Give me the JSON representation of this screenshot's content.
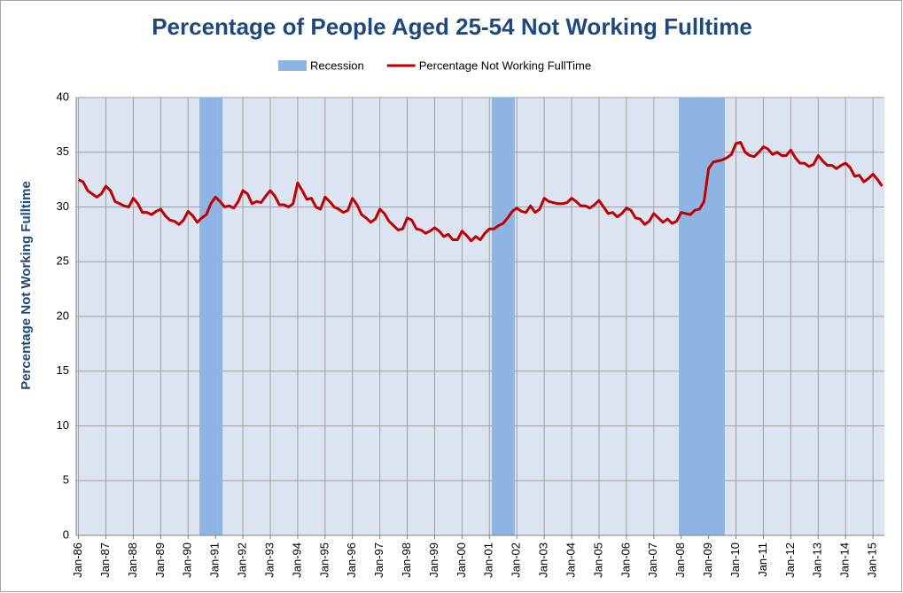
{
  "chart_data": {
    "type": "line",
    "title": "Percentage of People Aged 25-54 Not Working Fulltime",
    "y_label": "Percentage Not Working Fulltime",
    "categories": [
      "Jan-86",
      null,
      null,
      null,
      null,
      null,
      "Jan-87",
      null,
      null,
      null,
      null,
      null,
      "Jan-88",
      null,
      null,
      null,
      null,
      null,
      "Jan-89",
      null,
      null,
      null,
      null,
      null,
      "Jan-90",
      null,
      null,
      null,
      null,
      null,
      "Jan-91",
      null,
      null,
      null,
      null,
      null,
      "Jan-92",
      null,
      null,
      null,
      null,
      null,
      "Jan-93",
      null,
      null,
      null,
      null,
      null,
      "Jan-94",
      null,
      null,
      null,
      null,
      null,
      "Jan-95",
      null,
      null,
      null,
      null,
      null,
      "Jan-96",
      null,
      null,
      null,
      null,
      null,
      "Jan-97",
      null,
      null,
      null,
      null,
      null,
      "Jan-98",
      null,
      null,
      null,
      null,
      null,
      "Jan-99",
      null,
      null,
      null,
      null,
      null,
      "Jan-00",
      null,
      null,
      null,
      null,
      null,
      "Jan-01",
      null,
      null,
      null,
      null,
      null,
      "Jan-02",
      null,
      null,
      null,
      null,
      null,
      "Jan-03",
      null,
      null,
      null,
      null,
      null,
      "Jan-04",
      null,
      null,
      null,
      null,
      null,
      "Jan-05",
      null,
      null,
      null,
      null,
      null,
      "Jan-06",
      null,
      null,
      null,
      null,
      null,
      "Jan-07",
      null,
      null,
      null,
      null,
      null,
      "Jan-08",
      null,
      null,
      null,
      null,
      null,
      "Jan-09",
      null,
      null,
      null,
      null,
      null,
      "Jan-10",
      null,
      null,
      null,
      null,
      null,
      "Jan-11",
      null,
      null,
      null,
      null,
      null,
      "Jan-12",
      null,
      null,
      null,
      null,
      null,
      "Jan-13",
      null,
      null,
      null,
      null,
      null,
      "Jan-14",
      null,
      null,
      null,
      null,
      null,
      "Jan-15",
      null,
      null
    ],
    "series": [
      {
        "name": "Recession",
        "type": "bar",
        "color": "#8eb4e3",
        "values": [
          0,
          0,
          0,
          0,
          0,
          0,
          0,
          0,
          0,
          0,
          0,
          0,
          0,
          0,
          0,
          0,
          0,
          0,
          0,
          0,
          0,
          0,
          0,
          0,
          0,
          0,
          0,
          40,
          40,
          40,
          40,
          40,
          0,
          0,
          0,
          0,
          0,
          0,
          0,
          0,
          0,
          0,
          0,
          0,
          0,
          0,
          0,
          0,
          0,
          0,
          0,
          0,
          0,
          0,
          0,
          0,
          0,
          0,
          0,
          0,
          0,
          0,
          0,
          0,
          0,
          0,
          0,
          0,
          0,
          0,
          0,
          0,
          0,
          0,
          0,
          0,
          0,
          0,
          0,
          0,
          0,
          0,
          0,
          0,
          0,
          0,
          0,
          0,
          0,
          0,
          0,
          40,
          40,
          40,
          40,
          40,
          0,
          0,
          0,
          0,
          0,
          0,
          0,
          0,
          0,
          0,
          0,
          0,
          0,
          0,
          0,
          0,
          0,
          0,
          0,
          0,
          0,
          0,
          0,
          0,
          0,
          0,
          0,
          0,
          0,
          0,
          0,
          0,
          0,
          0,
          0,
          0,
          40,
          40,
          40,
          40,
          40,
          40,
          40,
          40,
          40,
          40,
          0,
          0,
          0,
          0,
          0,
          0,
          0,
          0,
          0,
          0,
          0,
          0,
          0,
          0,
          0,
          0,
          0,
          0,
          0,
          0,
          0,
          0,
          0,
          0,
          0,
          0,
          0,
          0,
          0,
          0,
          0,
          0,
          0,
          0,
          0
        ]
      },
      {
        "name": "Percentage Not Working FullTime",
        "type": "line",
        "color": "#c00000",
        "values": [
          32.5,
          32.3,
          31.5,
          31.2,
          30.9,
          31.2,
          31.9,
          31.5,
          30.5,
          30.3,
          30.1,
          30.0,
          30.8,
          30.3,
          29.5,
          29.5,
          29.3,
          29.6,
          29.8,
          29.2,
          28.8,
          28.7,
          28.4,
          28.8,
          29.6,
          29.2,
          28.6,
          29.0,
          29.3,
          30.3,
          30.9,
          30.5,
          30.0,
          30.1,
          29.9,
          30.5,
          31.5,
          31.2,
          30.3,
          30.5,
          30.4,
          31.0,
          31.5,
          31.0,
          30.2,
          30.2,
          30.0,
          30.3,
          32.2,
          31.5,
          30.7,
          30.8,
          30.0,
          29.8,
          30.9,
          30.5,
          30.0,
          29.8,
          29.5,
          29.7,
          30.8,
          30.2,
          29.3,
          29.0,
          28.6,
          28.9,
          29.8,
          29.4,
          28.7,
          28.3,
          27.9,
          28.0,
          29.0,
          28.8,
          28.0,
          27.9,
          27.6,
          27.8,
          28.1,
          27.8,
          27.3,
          27.5,
          27.0,
          27.0,
          27.8,
          27.4,
          26.9,
          27.3,
          27.0,
          27.6,
          28.0,
          28.0,
          28.3,
          28.5,
          29.0,
          29.6,
          29.9,
          29.6,
          29.5,
          30.1,
          29.5,
          29.8,
          30.8,
          30.5,
          30.4,
          30.3,
          30.3,
          30.4,
          30.8,
          30.5,
          30.1,
          30.1,
          29.9,
          30.2,
          30.6,
          30.0,
          29.4,
          29.5,
          29.1,
          29.4,
          29.9,
          29.7,
          29.0,
          28.9,
          28.4,
          28.7,
          29.4,
          29.0,
          28.6,
          28.9,
          28.5,
          28.7,
          29.5,
          29.4,
          29.3,
          29.7,
          29.8,
          30.5,
          33.5,
          34.1,
          34.2,
          34.3,
          34.5,
          34.8,
          35.8,
          35.9,
          35.0,
          34.7,
          34.6,
          35.0,
          35.5,
          35.3,
          34.8,
          35.0,
          34.7,
          34.7,
          35.2,
          34.5,
          34.0,
          34.0,
          33.7,
          33.9,
          34.7,
          34.2,
          33.8,
          33.8,
          33.5,
          33.8,
          34.0,
          33.6,
          32.8,
          32.9,
          32.3,
          32.6,
          33.0,
          32.5,
          31.9
        ]
      }
    ],
    "ylim": [
      0,
      40
    ],
    "yticks": [
      0,
      5,
      10,
      15,
      20,
      25,
      30,
      35,
      40
    ],
    "grid": true
  }
}
